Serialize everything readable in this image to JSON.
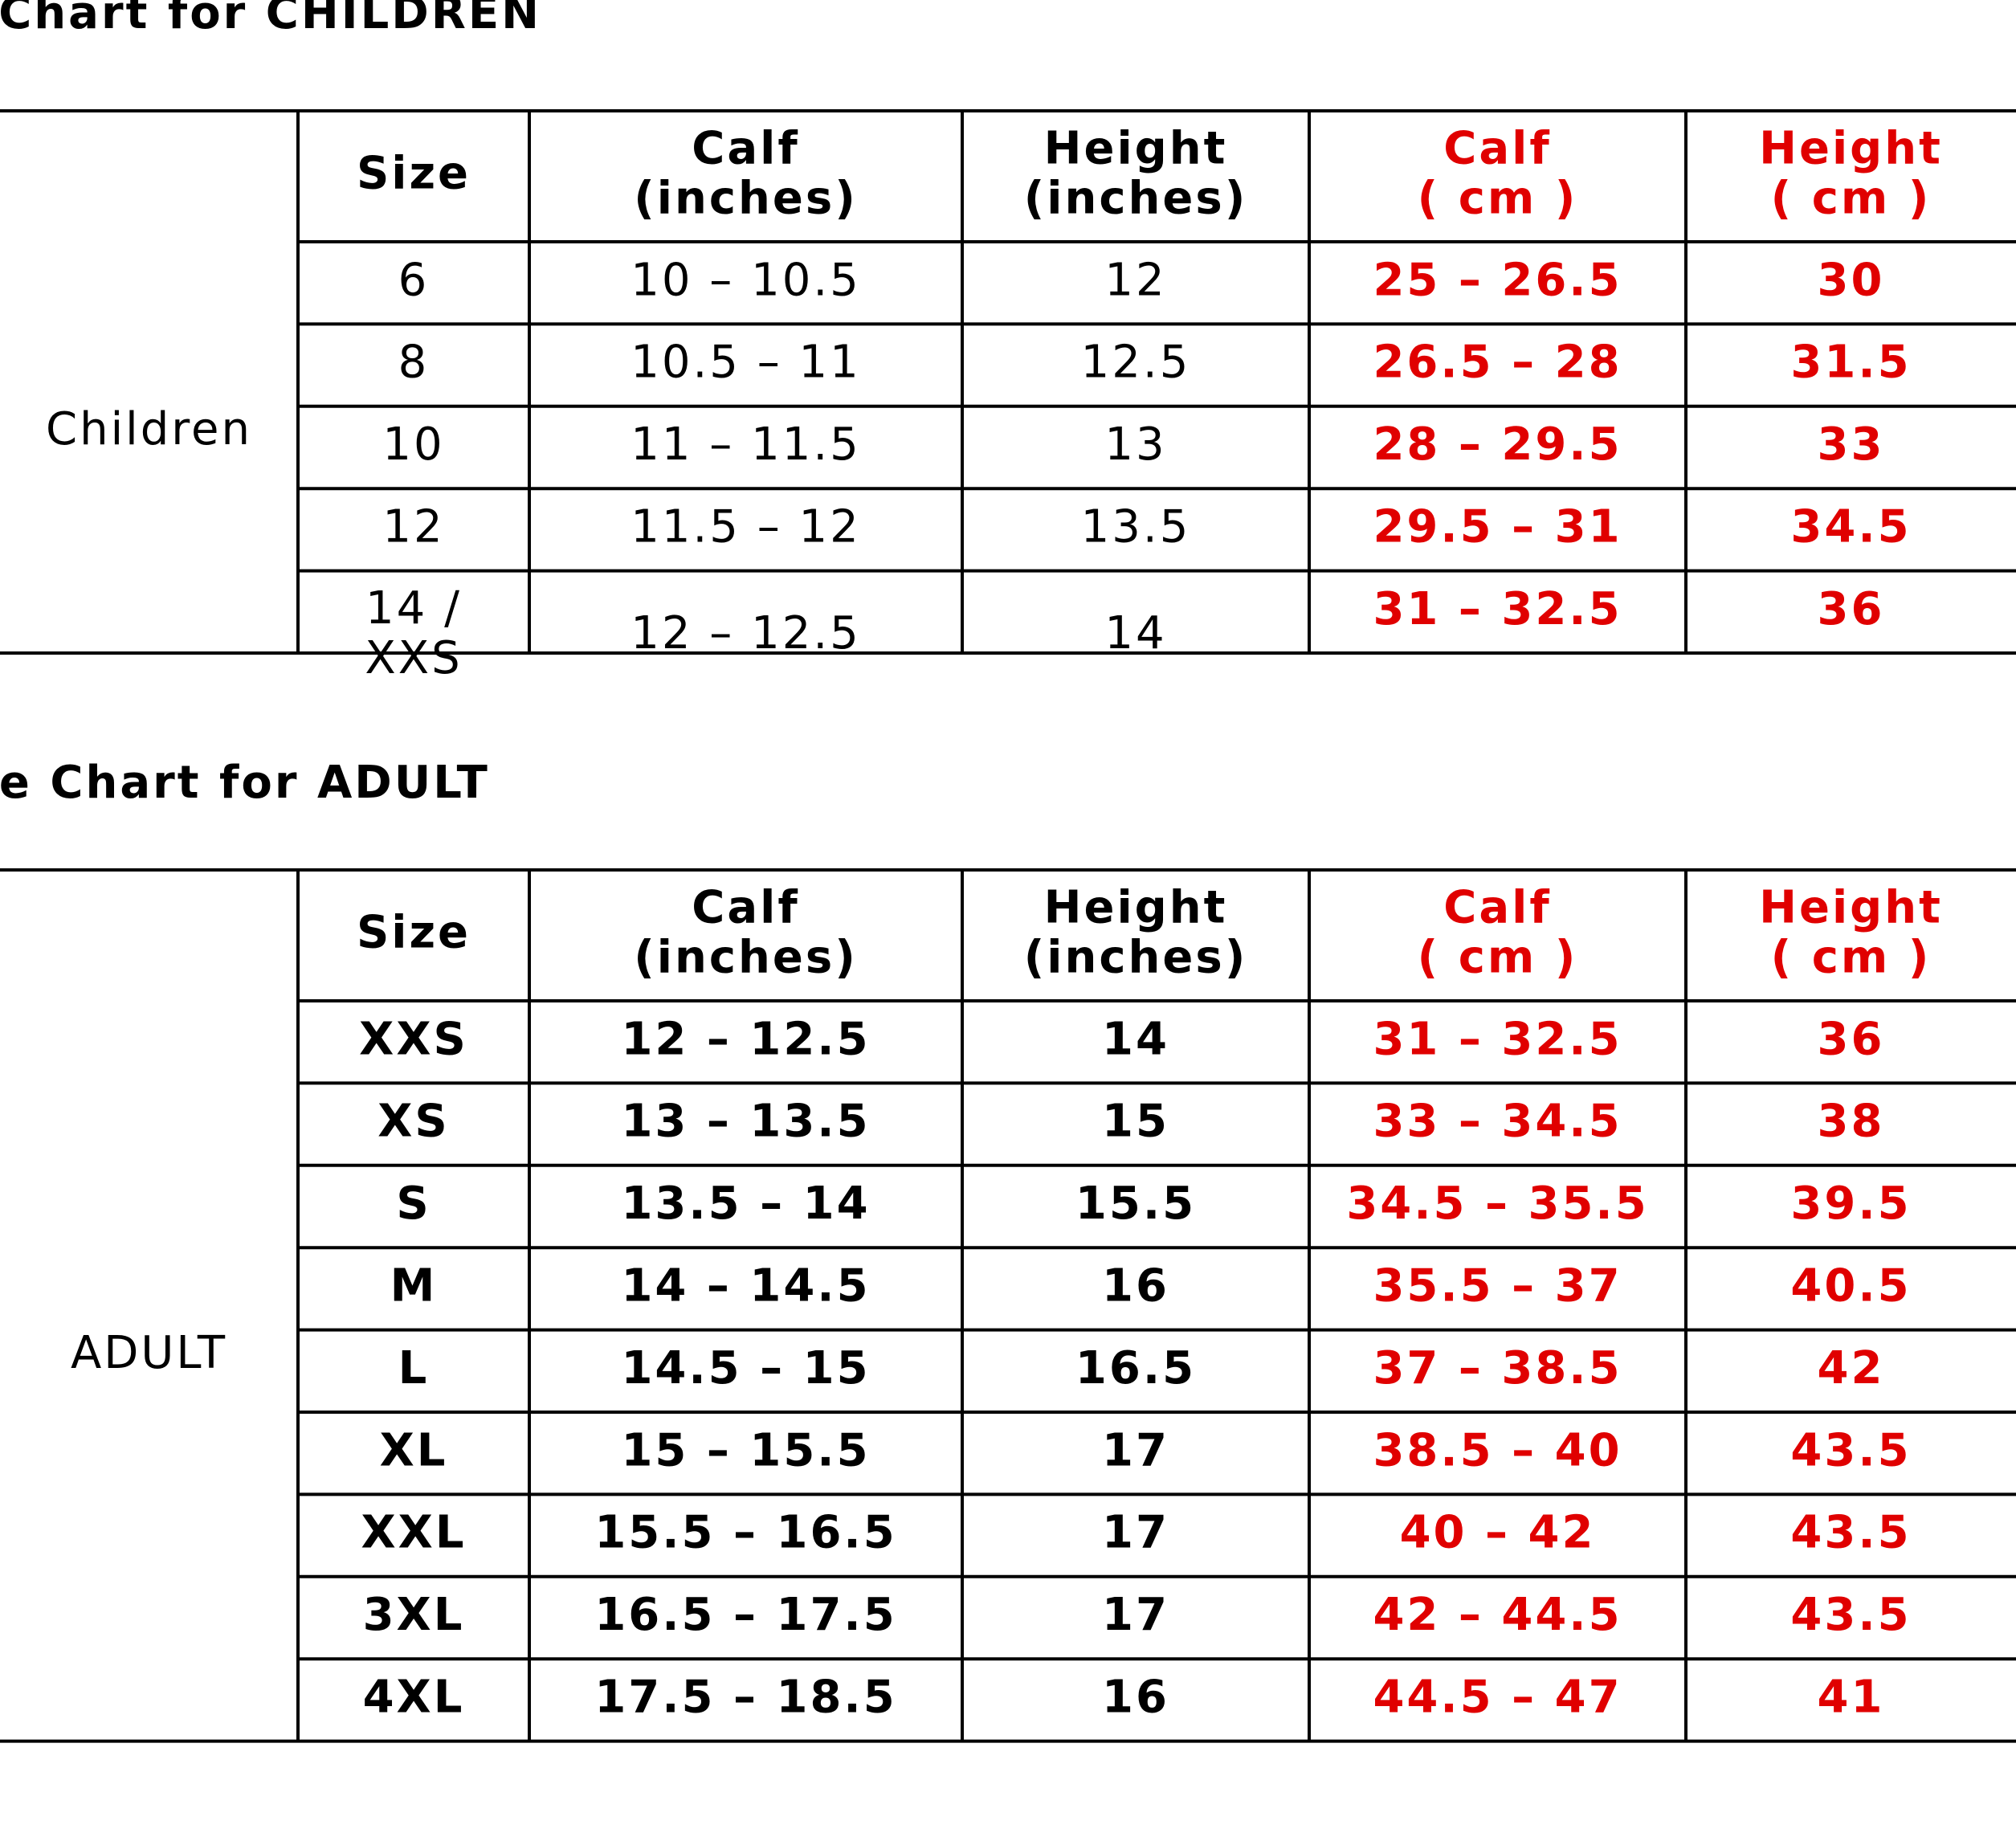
{
  "tables": [
    {
      "title": "AK Half Chaps Size Chart for CHILDREN",
      "group": "Children",
      "header": [
        [
          "Size"
        ],
        [
          "Calf",
          "(inches)"
        ],
        [
          "Height",
          "(inches)"
        ],
        [
          "Calf",
          "( cm )"
        ],
        [
          "Height",
          "( cm )"
        ]
      ],
      "rows": [
        [
          "6",
          "10 – 10.5",
          "12",
          "25 – 26.5",
          "30"
        ],
        [
          "8",
          "10.5 – 11",
          "12.5",
          "26.5 – 28",
          "31.5"
        ],
        [
          "10",
          "11 – 11.5",
          "13",
          "28 – 29.5",
          "33"
        ],
        [
          "12",
          "11.5 – 12",
          "13.5",
          "29.5 – 31",
          "34.5"
        ],
        [
          [
            "14 /",
            "XXS"
          ],
          "12 – 12.5",
          "14",
          "31 – 32.5",
          "36"
        ]
      ]
    },
    {
      "title": "AK Half Chaps Size Chart for ADULT",
      "group": "ADULT",
      "header": [
        [
          "Size"
        ],
        [
          "Calf",
          "(inches)"
        ],
        [
          "Height",
          "(inches)"
        ],
        [
          "Calf",
          "( cm )"
        ],
        [
          "Height",
          "( cm )"
        ]
      ],
      "rows": [
        [
          "XXS",
          "12 – 12.5",
          "14",
          "31 – 32.5",
          "36"
        ],
        [
          "XS",
          "13 – 13.5",
          "15",
          "33 – 34.5",
          "38"
        ],
        [
          "S",
          "13.5 – 14",
          "15.5",
          "34.5 – 35.5",
          "39.5"
        ],
        [
          "M",
          "14 – 14.5",
          "16",
          "35.5 – 37",
          "40.5"
        ],
        [
          "L",
          "14.5 – 15",
          "16.5",
          "37 – 38.5",
          "42"
        ],
        [
          "XL",
          "15 – 15.5",
          "17",
          "38.5 – 40",
          "43.5"
        ],
        [
          "XXL",
          "15.5 – 16.5",
          "17",
          "40 – 42",
          "43.5"
        ],
        [
          "3XL",
          "16.5 – 17.5",
          "17",
          "42 – 44.5",
          "43.5"
        ],
        [
          "4XL",
          "17.5 – 18.5",
          "16",
          "44.5 – 47",
          "41"
        ]
      ]
    }
  ]
}
